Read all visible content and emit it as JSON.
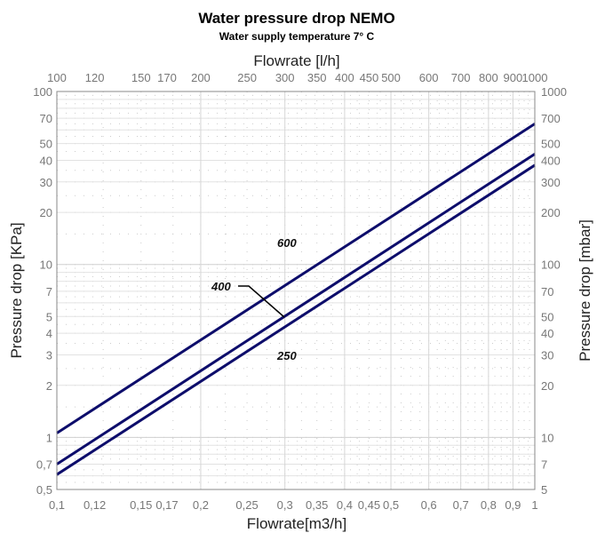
{
  "chart_data": {
    "type": "line",
    "title": "Water pressure drop  NEMO",
    "subtitle": "Water supply temperature 7° C",
    "xlabel_bottom": "Flowrate[m3/h]",
    "xlabel_top": "Flowrate [l/h]",
    "ylabel_left": "Pressure drop [KPa]",
    "ylabel_right": "Pressure drop [mbar]",
    "xscale": "log",
    "yscale": "log",
    "xlim": [
      0.1,
      1
    ],
    "ylim": [
      0.5,
      100
    ],
    "grid": true,
    "x_ticks": [
      0.1,
      0.12,
      0.15,
      0.17,
      0.2,
      0.25,
      0.3,
      0.35,
      0.4,
      0.45,
      0.5,
      0.6,
      0.7,
      0.8,
      0.9,
      1
    ],
    "x_tick_labels_bottom": [
      "0,1",
      "0,12",
      "0,15",
      "0,17",
      "0,2",
      "0,25",
      "0,3",
      "0,35",
      "0,4",
      "0,45",
      "0,5",
      "0,6",
      "0,7",
      "0,8",
      "0,9",
      "1"
    ],
    "x_tick_labels_top": [
      "100",
      "120",
      "150",
      "170",
      "200",
      "250",
      "300",
      "350",
      "400",
      "450",
      "500",
      "600",
      "700",
      "800",
      "900",
      "1000"
    ],
    "y_ticks": [
      100,
      70,
      50,
      40,
      30,
      20,
      10,
      7,
      5,
      4,
      3,
      2,
      1,
      0.7,
      0.5
    ],
    "y_tick_labels_left": [
      "100",
      "70",
      "50",
      "40",
      "30",
      "20",
      "10",
      "7",
      "5",
      "4",
      "3",
      "2",
      "1",
      "0,7",
      "0,5"
    ],
    "y_tick_labels_right": [
      "1000",
      "700",
      "500",
      "400",
      "300",
      "200",
      "100",
      "70",
      "50",
      "40",
      "30",
      "20",
      "10",
      "7",
      "5"
    ],
    "series": [
      {
        "name": "600",
        "x": [
          0.1,
          1
        ],
        "y": [
          1.06,
          65
        ]
      },
      {
        "name": "400",
        "x": [
          0.1,
          1
        ],
        "y": [
          0.7,
          43.5
        ]
      },
      {
        "name": "250",
        "x": [
          0.1,
          1
        ],
        "y": [
          0.61,
          37.5
        ]
      }
    ],
    "line_color": "#0d0d6b"
  }
}
